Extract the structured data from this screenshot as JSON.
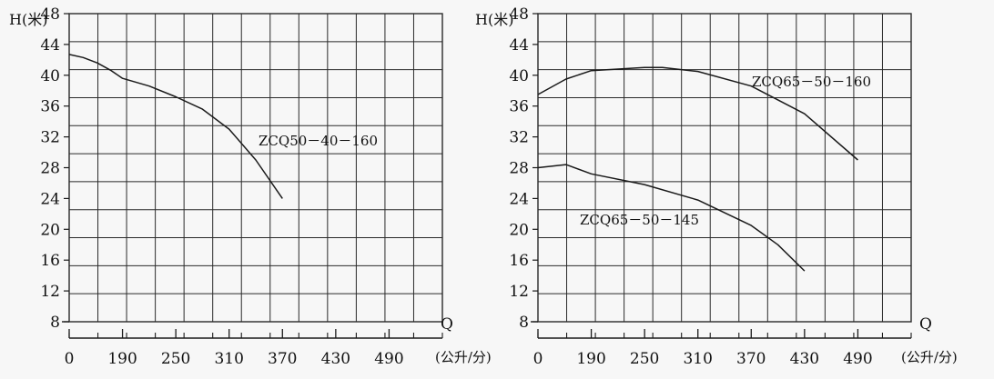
{
  "colors": {
    "background": "#f7f7f7",
    "ink": "#1a1a1a",
    "grid": "#2a2a2a"
  },
  "chart_data": [
    {
      "type": "line",
      "ylabel": "H(米)",
      "xlabel_letter": "Q",
      "x_unit": "(公升/分)",
      "x_tick_labels": [
        "0",
        "190",
        "250",
        "310",
        "370",
        "430",
        "490"
      ],
      "x_ticks": [
        0,
        190,
        250,
        310,
        370,
        430,
        490
      ],
      "y_ticks": [
        8,
        12,
        16,
        20,
        24,
        28,
        32,
        36,
        40,
        44,
        48
      ],
      "ylim": [
        8,
        48
      ],
      "grid": true,
      "series": [
        {
          "name": "ZCQ50－40－160",
          "x": [
            0,
            50,
            100,
            150,
            190,
            220,
            250,
            280,
            310,
            340,
            370
          ],
          "y": [
            42.7,
            42.3,
            41.6,
            40.6,
            39.6,
            38.6,
            37.2,
            35.6,
            33.0,
            29.0,
            24.0
          ]
        }
      ]
    },
    {
      "type": "line",
      "ylabel": "H(米)",
      "xlabel_letter": "Q",
      "x_unit": "(公升/分)",
      "x_tick_labels": [
        "0",
        "190",
        "250",
        "310",
        "370",
        "430",
        "490"
      ],
      "x_ticks": [
        0,
        190,
        250,
        310,
        370,
        430,
        490
      ],
      "y_ticks": [
        8,
        12,
        16,
        20,
        24,
        28,
        32,
        36,
        40,
        44,
        48
      ],
      "ylim": [
        8,
        48
      ],
      "grid": true,
      "series": [
        {
          "name": "ZCQ65－50－160",
          "x": [
            0,
            100,
            190,
            250,
            270,
            310,
            370,
            430,
            490
          ],
          "y": [
            37.5,
            39.5,
            40.6,
            41.0,
            41.0,
            40.5,
            38.6,
            35.0,
            29.0
          ]
        },
        {
          "name": "ZCQ65－50－145",
          "x": [
            0,
            100,
            190,
            250,
            310,
            370,
            400,
            430
          ],
          "y": [
            28.0,
            28.4,
            27.2,
            25.8,
            23.8,
            20.5,
            18.0,
            14.6
          ]
        }
      ]
    }
  ]
}
